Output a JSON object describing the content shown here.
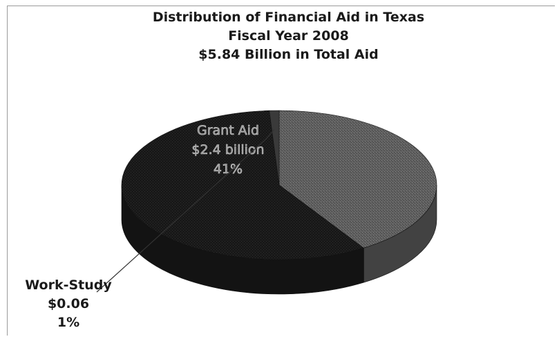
{
  "chart_data": {
    "type": "pie",
    "title": "Distribution of Financial Aid in Texas",
    "subtitle": "Fiscal Year 2008",
    "total_label": "$5.84 Billion in Total Aid",
    "slices": [
      {
        "label": "Grant Aid",
        "value_label": "$2.4 billion",
        "percent_label": "41%",
        "percent": 41,
        "color": "#5e5e5e"
      },
      {
        "label": "",
        "value_label": "",
        "percent_label": "",
        "percent": 58,
        "color": "#1b1b1b"
      },
      {
        "label": "Work-Study",
        "value_label": "$0.06",
        "percent_label": "1%",
        "percent": 1,
        "color": "#3a3a3a"
      }
    ],
    "style": "3d"
  }
}
